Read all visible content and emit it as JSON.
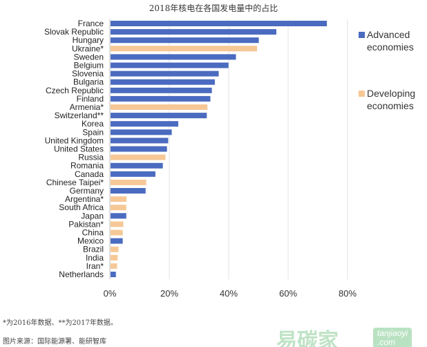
{
  "chart_data": {
    "type": "bar",
    "orientation": "horizontal",
    "title": "2018年核电在各国发电量中的占比",
    "xlabel": "",
    "ylabel": "",
    "xlim": [
      0,
      80
    ],
    "x_ticks": [
      "0%",
      "20%",
      "40%",
      "60%",
      "80%"
    ],
    "grid": true,
    "legend_position": "right",
    "legend": [
      {
        "name": "Advanced economies",
        "line1": "Advanced",
        "line2": "economies",
        "color": "#4a6bbf"
      },
      {
        "name": "Developing economies",
        "line1": "Developing",
        "line2": "economies",
        "color": "#f6c896"
      }
    ],
    "categories": [
      "France",
      "Slovak Republic",
      "Hungary",
      "Ukraine*",
      "Sweden",
      "Belgium",
      "Slovenia",
      "Bulgaria",
      "Czech Republic",
      "Finland",
      "Armenia*",
      "Switzerland**",
      "Korea",
      "Spain",
      "United Kingdom",
      "United States",
      "Russia",
      "Romania",
      "Canada",
      "Chinese Taipei*",
      "Germany",
      "Argentina*",
      "South Africa",
      "Japan",
      "Pakistan*",
      "China",
      "Mexico",
      "Brazil",
      "India",
      "Iran*",
      "Netherlands"
    ],
    "values": [
      72.8,
      55.8,
      49.9,
      49.3,
      42.2,
      39.7,
      36.4,
      35.1,
      34.1,
      33.6,
      32.6,
      32.4,
      22.8,
      20.6,
      19.4,
      19.0,
      18.5,
      17.6,
      15.1,
      12.0,
      11.8,
      5.4,
      5.3,
      5.3,
      4.3,
      4.1,
      4.1,
      2.7,
      2.4,
      2.2,
      1.8
    ],
    "groups": [
      "A",
      "A",
      "A",
      "D",
      "A",
      "A",
      "A",
      "A",
      "A",
      "A",
      "D",
      "A",
      "A",
      "A",
      "A",
      "A",
      "D",
      "A",
      "A",
      "D",
      "A",
      "D",
      "D",
      "A",
      "D",
      "D",
      "A",
      "D",
      "D",
      "D",
      "A"
    ]
  },
  "notes": {
    "footnote": "*为2016年数据、**为2017年数据。",
    "source": "图片来源：国际能源署、能研智库"
  },
  "watermark": {
    "brand": "易碳家",
    "url_line1": "tanjiaoyi",
    "url_line2": ".com"
  }
}
